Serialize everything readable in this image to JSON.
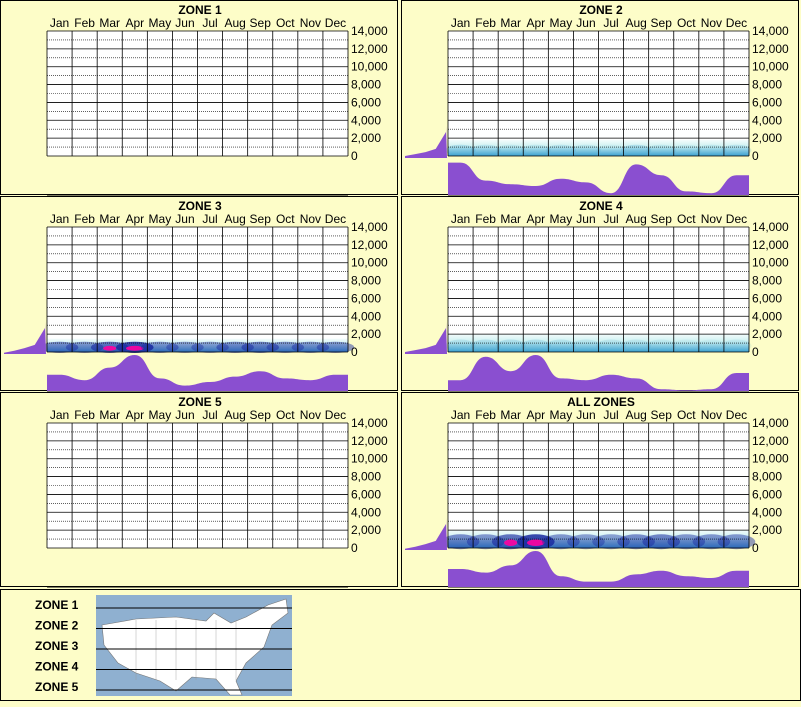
{
  "months": [
    "Jan",
    "Feb",
    "Mar",
    "Apr",
    "May",
    "Jun",
    "Jul",
    "Aug",
    "Sep",
    "Oct",
    "Nov",
    "Dec"
  ],
  "y_ticks": [
    "14,000",
    "12,000",
    "10,000",
    "8,000",
    "6,000",
    "4,000",
    "2,000",
    "0"
  ],
  "colors": {
    "background": "#fdfdc8",
    "area": "#8a4fd0",
    "grid": "#000000",
    "heat_light": "#c8f0f0",
    "heat_mid": "#3aa0d0",
    "heat_dark": "#1a2aa0",
    "heat_hot": "#ff00a0"
  },
  "charts": [
    {
      "title": "ZONE 1",
      "chart_data": {
        "type": "heatmap",
        "title": "ZONE 1",
        "x": [
          "Jan",
          "Feb",
          "Mar",
          "Apr",
          "May",
          "Jun",
          "Jul",
          "Aug",
          "Sep",
          "Oct",
          "Nov",
          "Dec"
        ],
        "ylim": [
          0,
          14000
        ],
        "has_data": false,
        "heat_band": [],
        "monthly_profile": [],
        "elevation_profile": []
      }
    },
    {
      "title": "ZONE 2",
      "chart_data": {
        "type": "heatmap",
        "title": "ZONE 2",
        "x": [
          "Jan",
          "Feb",
          "Mar",
          "Apr",
          "May",
          "Jun",
          "Jul",
          "Aug",
          "Sep",
          "Oct",
          "Nov",
          "Dec"
        ],
        "ylim": [
          0,
          14000
        ],
        "has_data": true,
        "heat_band": [
          0.35,
          0.25,
          0.2,
          0.2,
          0.25,
          0.2,
          0.1,
          0.35,
          0.2,
          0.15,
          0.2,
          0.25
        ],
        "heat_band_top": 1800,
        "monthly_profile": [
          0.9,
          0.4,
          0.3,
          0.25,
          0.45,
          0.35,
          0.05,
          0.85,
          0.55,
          0.1,
          0.05,
          0.55
        ],
        "elevation_profile": [
          0.15,
          0.3,
          0.45,
          0.7,
          1.0
        ]
      }
    },
    {
      "title": "ZONE 3",
      "chart_data": {
        "type": "heatmap",
        "title": "ZONE 3",
        "x": [
          "Jan",
          "Feb",
          "Mar",
          "Apr",
          "May",
          "Jun",
          "Jul",
          "Aug",
          "Sep",
          "Oct",
          "Nov",
          "Dec"
        ],
        "ylim": [
          0,
          14000
        ],
        "has_data": true,
        "heat_band": [
          0.6,
          0.55,
          0.75,
          1.0,
          0.55,
          0.5,
          0.5,
          0.6,
          0.65,
          0.55,
          0.55,
          0.55
        ],
        "heat_band_top": 1500,
        "monthly_profile": [
          0.45,
          0.3,
          0.65,
          1.0,
          0.35,
          0.15,
          0.25,
          0.4,
          0.55,
          0.35,
          0.3,
          0.45
        ],
        "elevation_profile": [
          0.1,
          0.25,
          0.45,
          0.7,
          1.0
        ]
      }
    },
    {
      "title": "ZONE 4",
      "chart_data": {
        "type": "heatmap",
        "title": "ZONE 4",
        "x": [
          "Jan",
          "Feb",
          "Mar",
          "Apr",
          "May",
          "Jun",
          "Jul",
          "Aug",
          "Sep",
          "Oct",
          "Nov",
          "Dec"
        ],
        "ylim": [
          0,
          14000
        ],
        "has_data": true,
        "heat_band": [
          0.25,
          0.3,
          0.3,
          0.3,
          0.25,
          0.2,
          0.2,
          0.2,
          0.15,
          0.1,
          0.1,
          0.15
        ],
        "heat_band_top": 2000,
        "monthly_profile": [
          0.3,
          0.95,
          0.55,
          1.0,
          0.35,
          0.3,
          0.45,
          0.35,
          0.05,
          0.02,
          0.05,
          0.5
        ],
        "elevation_profile": [
          0.15,
          0.3,
          0.45,
          0.7,
          1.0
        ]
      }
    },
    {
      "title": "ZONE 5",
      "chart_data": {
        "type": "heatmap",
        "title": "ZONE 5",
        "x": [
          "Jan",
          "Feb",
          "Mar",
          "Apr",
          "May",
          "Jun",
          "Jul",
          "Aug",
          "Sep",
          "Oct",
          "Nov",
          "Dec"
        ],
        "ylim": [
          0,
          14000
        ],
        "has_data": false,
        "heat_band": [],
        "monthly_profile": [],
        "elevation_profile": []
      }
    },
    {
      "title": "ALL ZONES",
      "chart_data": {
        "type": "heatmap",
        "title": "ALL ZONES",
        "x": [
          "Jan",
          "Feb",
          "Mar",
          "Apr",
          "May",
          "Jun",
          "Jul",
          "Aug",
          "Sep",
          "Oct",
          "Nov",
          "Dec"
        ],
        "ylim": [
          0,
          14000
        ],
        "has_data": true,
        "heat_band": [
          0.6,
          0.55,
          0.75,
          1.0,
          0.55,
          0.5,
          0.5,
          0.6,
          0.65,
          0.55,
          0.55,
          0.55
        ],
        "heat_band_top": 2000,
        "monthly_profile": [
          0.5,
          0.4,
          0.6,
          1.0,
          0.3,
          0.15,
          0.15,
          0.35,
          0.45,
          0.3,
          0.25,
          0.45
        ],
        "elevation_profile": [
          0.1,
          0.25,
          0.45,
          0.7,
          1.0
        ]
      }
    }
  ],
  "legend": {
    "zones": [
      "ZONE 1",
      "ZONE 2",
      "ZONE 3",
      "ZONE 4",
      "ZONE 5"
    ]
  }
}
